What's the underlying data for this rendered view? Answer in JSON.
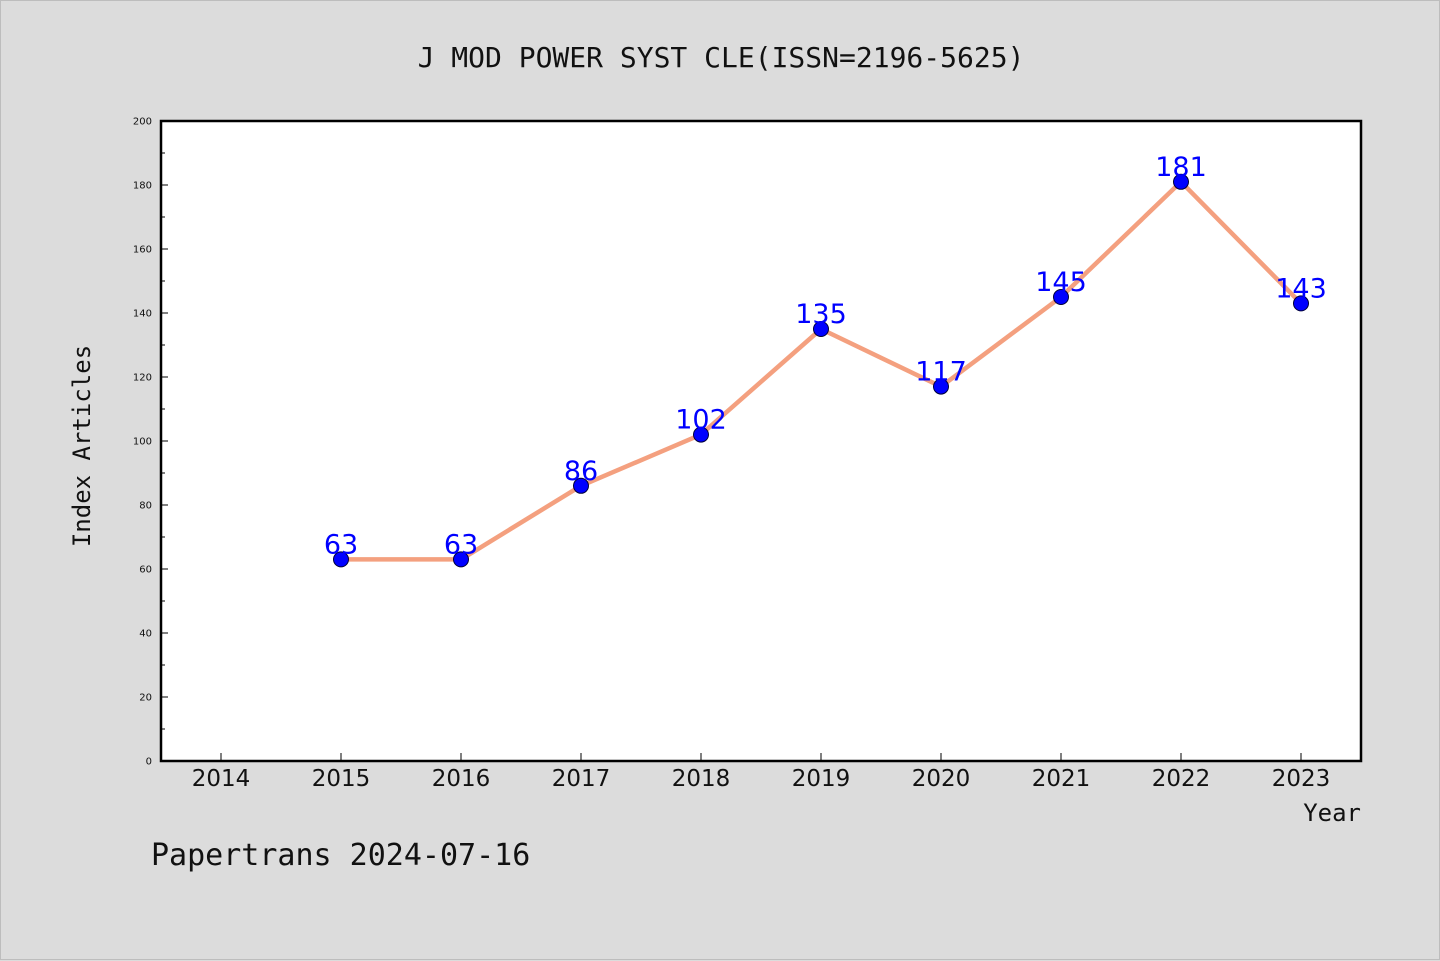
{
  "chart_data": {
    "type": "line",
    "title": "J MOD POWER SYST CLE(ISSN=2196-5625)",
    "xlabel": "Year",
    "ylabel": "Index Articles",
    "footer": "Papertrans 2024-07-16",
    "x_ticks": [
      "2014",
      "2015",
      "2016",
      "2017",
      "2018",
      "2019",
      "2020",
      "2021",
      "2022",
      "2023"
    ],
    "y_ticks": [
      "0",
      "20",
      "40",
      "60",
      "80",
      "100",
      "120",
      "140",
      "160",
      "180",
      "200"
    ],
    "ylim": [
      0,
      200
    ],
    "grid": false,
    "series": [
      {
        "x": [
          "2015",
          "2016",
          "2017",
          "2018",
          "2019",
          "2020",
          "2021",
          "2022",
          "2023"
        ],
        "values": [
          63,
          63,
          86,
          102,
          135,
          117,
          145,
          181,
          143
        ],
        "line_color": "#f4a07f",
        "marker_color": "#0000ff",
        "label_color": "#0000ff"
      }
    ]
  }
}
